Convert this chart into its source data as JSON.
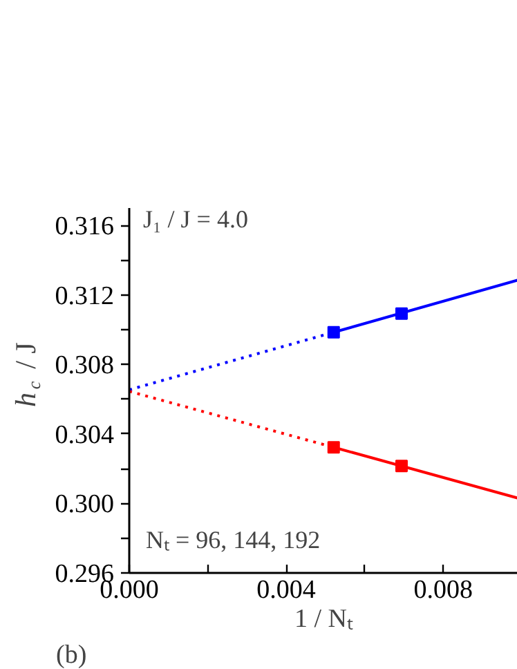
{
  "chart_data": {
    "type": "line",
    "xlabel": "1 / Nₜ",
    "ylabel": "h$_{c}$ / J",
    "xlim": [
      0,
      0.0099
    ],
    "ylim": [
      0.296,
      0.317
    ],
    "xticks": [
      {
        "value": 0,
        "label": "0.000"
      },
      {
        "value": 0.002,
        "label": null
      },
      {
        "value": 0.004,
        "label": "0.004"
      },
      {
        "value": 0.006,
        "label": null
      },
      {
        "value": 0.008,
        "label": "0.008"
      }
    ],
    "yticks": [
      {
        "value": 0.296,
        "label": "0.296"
      },
      {
        "value": 0.298,
        "label": null
      },
      {
        "value": 0.3,
        "label": "0.300"
      },
      {
        "value": 0.302,
        "label": null
      },
      0.304,
      {
        "value": 0.306,
        "label": null
      },
      0.308,
      {
        "value": 0.31,
        "label": null
      },
      0.312,
      {
        "value": 0.314,
        "label": null
      },
      0.316
    ],
    "grid": false,
    "series": [
      {
        "type": "scatter",
        "marker": "square",
        "color": "#0000ff",
        "x": [
          0.00521,
          0.00694
        ],
        "values": [
          0.30985,
          0.31092
        ]
      },
      {
        "type": "line",
        "line_style": "solid",
        "color": "#0000ff",
        "x": [
          0.00521,
          0.0099
        ],
        "values": [
          0.30985,
          0.31285
        ]
      },
      {
        "type": "line",
        "line_style": "dotted",
        "color": "#0000ff",
        "x": [
          0,
          0.00521
        ],
        "values": [
          0.30654,
          0.30985
        ]
      },
      {
        "type": "scatter",
        "marker": "square",
        "color": "#ff0000",
        "x": [
          0.00521,
          0.00694
        ],
        "values": [
          0.30323,
          0.30215
        ]
      },
      {
        "type": "line",
        "line_style": "solid",
        "color": "#ff0000",
        "x": [
          0.00521,
          0.0099
        ],
        "values": [
          0.30323,
          0.30031
        ]
      },
      {
        "type": "line",
        "line_style": "dotted",
        "color": "#ff0000",
        "x": [
          0,
          0.00521
        ],
        "values": [
          0.30645,
          0.30323
        ]
      }
    ],
    "annotations": [
      "J₁ / J = 4.0",
      "Nₜ = 96, 144, 192",
      "(b)"
    ]
  }
}
